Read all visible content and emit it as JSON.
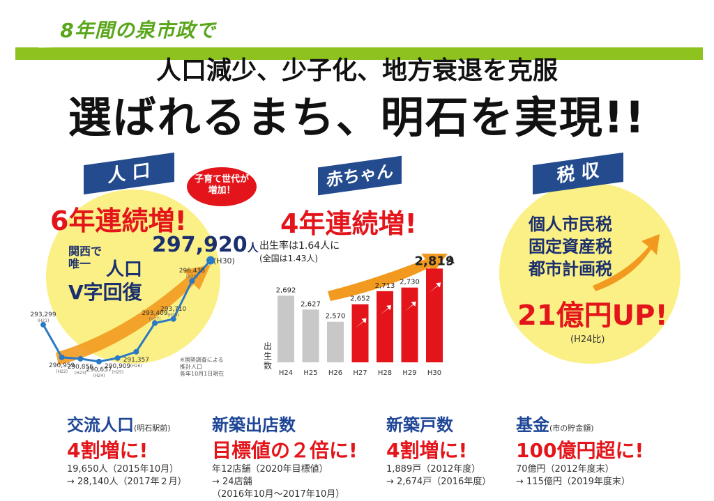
{
  "header": {
    "badge": "8年間の泉市政で",
    "subtitle": "人口減少、少子化、地方衰退を克服",
    "title": "選ばれるまち、明石を実現!!"
  },
  "population": {
    "tag": "人 口",
    "bubble_line1": "子育て世代が",
    "bubble_line2": "増加！",
    "headline": "6年連続増!",
    "kansai_line1": "関西で",
    "kansai_line2": "唯一",
    "kansai_line3": "人口",
    "kansai_line4": "V字回復",
    "final_value": "297,920",
    "final_unit": "人",
    "final_period": "(H30)",
    "source_line1": "※国勢調査による",
    "source_line2": "推計人口",
    "source_line3": "各年10月1日現在"
  },
  "baby": {
    "tag": "赤ちゃん",
    "headline": "4年連続増!",
    "rate_line1": "出生率は1.64人に",
    "rate_line2": "(全国は1.43人)",
    "y_label": "出生数",
    "final_unit": "人"
  },
  "tax": {
    "tag": "税 収",
    "line1": "個人市民税",
    "line2": "固定資産税",
    "line3": "都市計画税",
    "amount": "21億円UP!",
    "note": "(H24比)"
  },
  "bottom": [
    {
      "title": "交流人口",
      "title_note": "(明石駅前)",
      "big": "4割増に!",
      "notes": [
        "19,650人（2015年10月）",
        "→ 28,140人（2017年２月）"
      ]
    },
    {
      "title": "新築出店数",
      "title_note": "",
      "big": "目標値の２倍に!",
      "notes": [
        "年12店舗（2020年目標値）",
        "→ 24店舗",
        "（2016年10月〜2017年10月）"
      ]
    },
    {
      "title": "新築戸数",
      "title_note": "",
      "big": "4割増に!",
      "notes": [
        "1,889戸（2012年度）",
        "→ 2,674戸（2016年度）"
      ]
    },
    {
      "title": "基金",
      "title_note": "(市の貯金額)",
      "big": "100億円超に!",
      "notes": [
        "70億円（2012年度末）",
        "→ 115億円（2019年度末）"
      ]
    }
  ],
  "colors": {
    "green": "#8dc21f",
    "navy": "#234b8e",
    "red": "#e3151b",
    "yellow": "#fbf086",
    "line_blue": "#2a79c5",
    "orange": "#f29a1f",
    "gray_bar": "#c8c8c8"
  },
  "chart_data": [
    {
      "type": "line",
      "x": [
        "H21",
        "H22",
        "H23",
        "H24",
        "H25",
        "H26",
        "H27",
        "H28",
        "H29",
        "H30"
      ],
      "values": [
        293299,
        290959,
        290856,
        290657,
        290909,
        291357,
        293409,
        293710,
        296438,
        297920
      ],
      "labels": [
        "293,299",
        "290,959",
        "290,856",
        "290,657",
        "290,909",
        "291,357",
        "293,409",
        "293,710",
        "296,438",
        "297,920"
      ]
    },
    {
      "type": "bar",
      "categories": [
        "H24",
        "H25",
        "H26",
        "H27",
        "H28",
        "H29",
        "H30"
      ],
      "values": [
        2692,
        2627,
        2570,
        2652,
        2713,
        2730,
        2819
      ],
      "labels": [
        "2,692",
        "2,627",
        "2,570",
        "2,652",
        "2,713",
        "2,730",
        "2,819"
      ],
      "highlight_from": 3
    }
  ]
}
